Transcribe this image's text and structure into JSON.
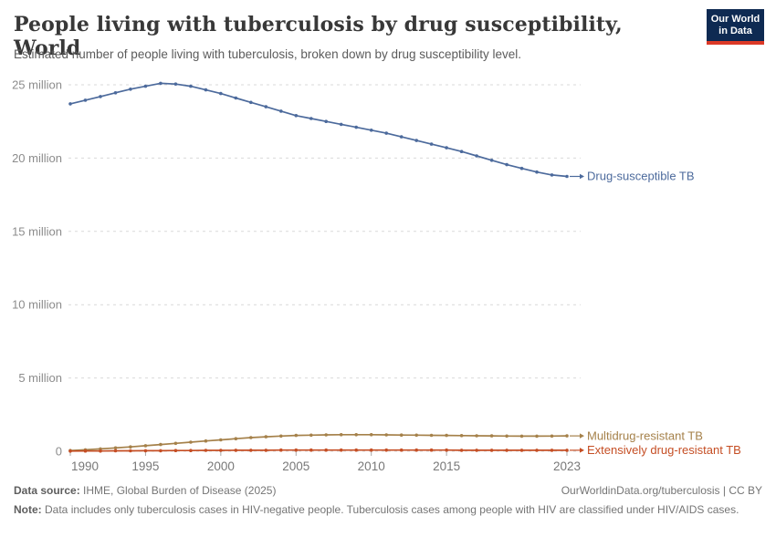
{
  "chart_data": {
    "type": "line",
    "title": "People living with tuberculosis by drug susceptibility, World",
    "subtitle": "Estimated number of people living with tuberculosis, broken down by drug susceptibility level.",
    "unit": "million people",
    "x": [
      1990,
      1991,
      1992,
      1993,
      1994,
      1995,
      1996,
      1997,
      1998,
      1999,
      2000,
      2001,
      2002,
      2003,
      2004,
      2005,
      2006,
      2007,
      2008,
      2009,
      2010,
      2011,
      2012,
      2013,
      2014,
      2015,
      2016,
      2017,
      2018,
      2019,
      2020,
      2021,
      2022,
      2023
    ],
    "series": [
      {
        "name": "Drug-susceptible TB",
        "color": "#4C6A9C",
        "values": [
          23.7,
          23.95,
          24.2,
          24.45,
          24.7,
          24.9,
          25.1,
          25.05,
          24.9,
          24.65,
          24.4,
          24.1,
          23.8,
          23.5,
          23.2,
          22.9,
          22.7,
          22.5,
          22.3,
          22.1,
          21.9,
          21.7,
          21.45,
          21.2,
          20.95,
          20.7,
          20.45,
          20.15,
          19.85,
          19.55,
          19.3,
          19.05,
          18.85,
          18.75
        ]
      },
      {
        "name": "Multidrug-resistant TB",
        "color": "#A5814A",
        "values": [
          0.05,
          0.1,
          0.16,
          0.23,
          0.3,
          0.38,
          0.46,
          0.54,
          0.62,
          0.7,
          0.78,
          0.86,
          0.93,
          0.99,
          1.04,
          1.08,
          1.1,
          1.12,
          1.13,
          1.13,
          1.13,
          1.12,
          1.11,
          1.1,
          1.09,
          1.08,
          1.07,
          1.06,
          1.05,
          1.04,
          1.03,
          1.03,
          1.04,
          1.05
        ]
      },
      {
        "name": "Extensively drug-resistant TB",
        "color": "#C54E24",
        "values": [
          0.01,
          0.02,
          0.02,
          0.03,
          0.03,
          0.04,
          0.04,
          0.05,
          0.05,
          0.06,
          0.06,
          0.07,
          0.07,
          0.07,
          0.08,
          0.08,
          0.08,
          0.08,
          0.08,
          0.08,
          0.08,
          0.08,
          0.08,
          0.08,
          0.08,
          0.08,
          0.07,
          0.07,
          0.07,
          0.07,
          0.07,
          0.07,
          0.07,
          0.07
        ]
      }
    ],
    "xlabel": "",
    "ylabel": "",
    "ylim": [
      0,
      25.5
    ],
    "yticks": [
      {
        "value": 0,
        "label": "0"
      },
      {
        "value": 5,
        "label": "5 million"
      },
      {
        "value": 10,
        "label": "10 million"
      },
      {
        "value": 15,
        "label": "15 million"
      },
      {
        "value": 20,
        "label": "20 million"
      },
      {
        "value": 25,
        "label": "25 million"
      }
    ],
    "xticks": [
      1990,
      1995,
      2000,
      2005,
      2010,
      2015,
      2023
    ],
    "grid": "dashed-horizontal",
    "legend_position": "right-end-labels",
    "colors": {
      "grid": "#d9d9d9",
      "axis_label": "#8c8c8c",
      "x_tick_label": "#787878",
      "tick_mark": "#a8a8a8"
    }
  },
  "header": {
    "logo": {
      "line1": "Our World",
      "line2": "in Data",
      "bg": "#0e2a52",
      "accent": "#dc3927"
    }
  },
  "footer": {
    "source_label": "Data source:",
    "source_text": " IHME, Global Burden of Disease (2025)",
    "link_text": "OurWorldinData.org/tuberculosis | CC BY",
    "note_label": "Note:",
    "note_text": " Data includes only tuberculosis cases in HIV-negative people. Tuberculosis cases among people with HIV are classified under HIV/AIDS cases."
  }
}
